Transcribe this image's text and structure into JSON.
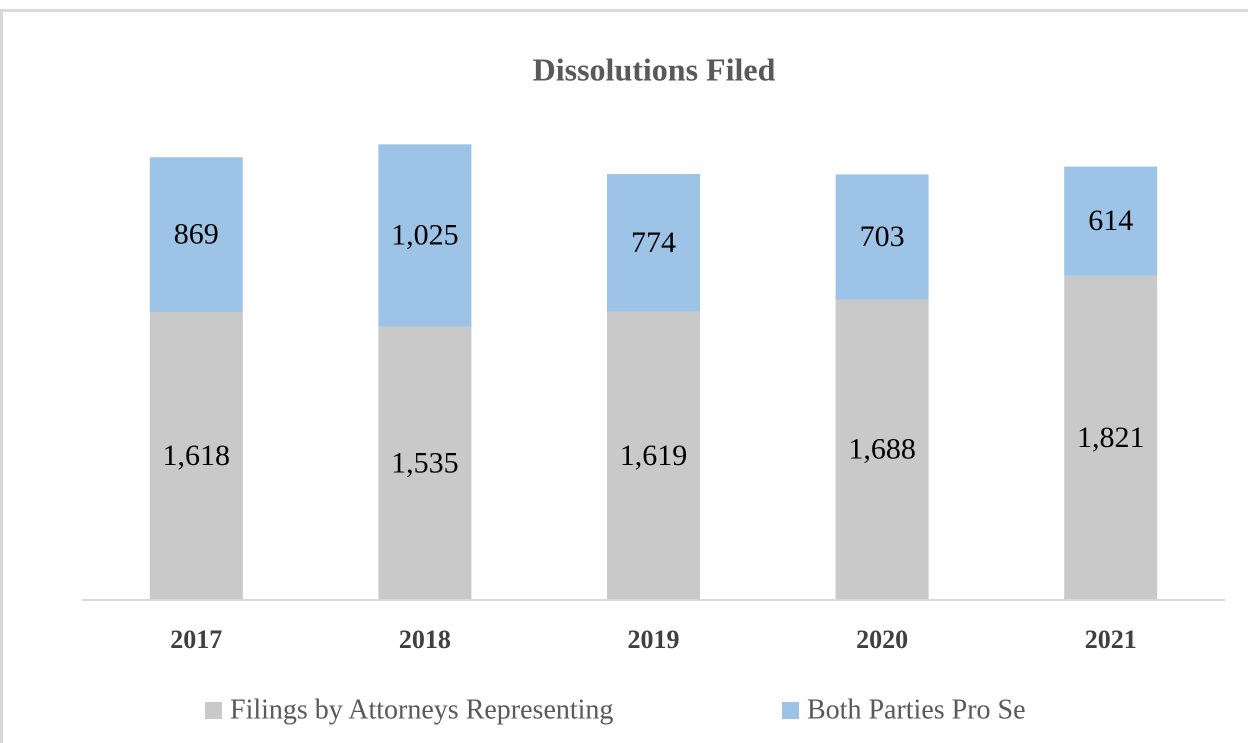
{
  "chart_data": {
    "type": "stacked_bar",
    "title": "Dissolutions Filed",
    "categories": [
      "2017",
      "2018",
      "2019",
      "2020",
      "2021"
    ],
    "series": [
      {
        "name": "Filings by Attorneys Representing",
        "color": "#c9c9c9",
        "values": [
          1618,
          1535,
          1619,
          1688,
          1821
        ],
        "value_labels": [
          "1,618",
          "1,535",
          "1,619",
          "1,688",
          "1,821"
        ]
      },
      {
        "name": "Both Parties Pro Se",
        "color": "#9dc3e6",
        "values": [
          869,
          1025,
          774,
          703,
          614
        ],
        "value_labels": [
          "869",
          "1,025",
          "774",
          "703",
          "614"
        ]
      }
    ],
    "ylim": [
      0,
      3000
    ],
    "legend": "bottom"
  }
}
